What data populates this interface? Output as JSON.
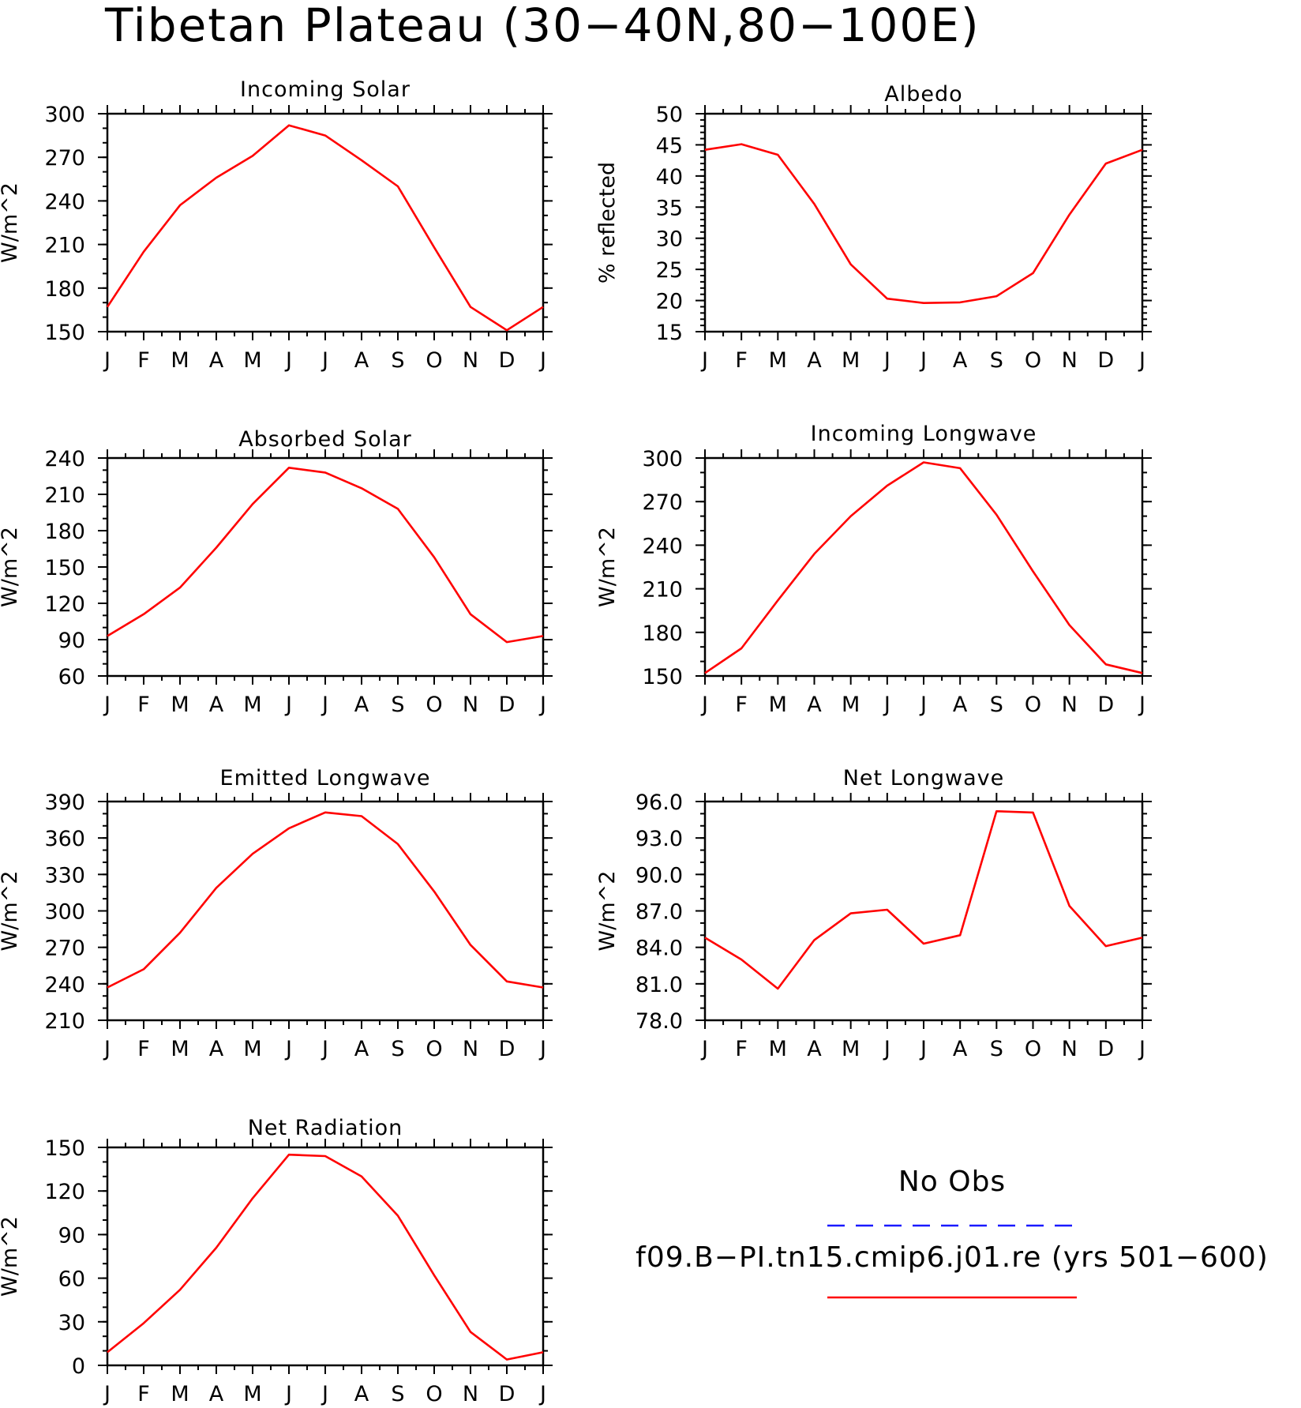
{
  "title": "Tibetan Plateau (30−40N,80−100E)",
  "colors": {
    "model": "#ff0000",
    "obs": "#1a1aff",
    "axis": "#000000"
  },
  "month_labels": [
    "J",
    "F",
    "M",
    "A",
    "M",
    "J",
    "J",
    "A",
    "S",
    "O",
    "N",
    "D",
    "J"
  ],
  "legend": {
    "obs_label": "No Obs",
    "model_label": "f09.B−PI.tn15.cmip6.j01.re (yrs 501−600)"
  },
  "chart_data": [
    {
      "type": "line",
      "title": "Incoming Solar",
      "ylabel": "W/m^2",
      "ylim": [
        150,
        300
      ],
      "yticks": [
        "150",
        "180",
        "210",
        "240",
        "270",
        "300"
      ],
      "ytick_values": [
        150,
        180,
        210,
        240,
        270,
        300
      ],
      "minor_step": 10,
      "categories": [
        "J",
        "F",
        "M",
        "A",
        "M",
        "J",
        "J",
        "A",
        "S",
        "O",
        "N",
        "D",
        "J"
      ],
      "series": [
        {
          "values": [
            167,
            205,
            237,
            256,
            271,
            292,
            285,
            268,
            250,
            208,
            167,
            151,
            167
          ]
        }
      ]
    },
    {
      "type": "line",
      "title": "Albedo",
      "ylabel": "% reflected",
      "ylim": [
        15,
        50
      ],
      "yticks": [
        "15",
        "20",
        "25",
        "30",
        "35",
        "40",
        "45",
        "50"
      ],
      "ytick_values": [
        15,
        20,
        25,
        30,
        35,
        40,
        45,
        50
      ],
      "minor_step": 1,
      "categories": [
        "J",
        "F",
        "M",
        "A",
        "M",
        "J",
        "J",
        "A",
        "S",
        "O",
        "N",
        "D",
        "J"
      ],
      "series": [
        {
          "values": [
            44.2,
            45.1,
            43.4,
            35.5,
            25.8,
            20.3,
            19.6,
            19.7,
            20.7,
            24.4,
            33.8,
            42.0,
            44.2
          ]
        }
      ]
    },
    {
      "type": "line",
      "title": "Absorbed Solar",
      "ylabel": "W/m^2",
      "ylim": [
        60,
        240
      ],
      "yticks": [
        "60",
        "90",
        "120",
        "150",
        "180",
        "210",
        "240"
      ],
      "ytick_values": [
        60,
        90,
        120,
        150,
        180,
        210,
        240
      ],
      "minor_step": 10,
      "categories": [
        "J",
        "F",
        "M",
        "A",
        "M",
        "J",
        "J",
        "A",
        "S",
        "O",
        "N",
        "D",
        "J"
      ],
      "series": [
        {
          "values": [
            93,
            111,
            133,
            166,
            202,
            232,
            228,
            215,
            198,
            158,
            111,
            88,
            93
          ]
        }
      ]
    },
    {
      "type": "line",
      "title": "Incoming Longwave",
      "ylabel": "W/m^2",
      "ylim": [
        150,
        300
      ],
      "yticks": [
        "150",
        "180",
        "210",
        "240",
        "270",
        "300"
      ],
      "ytick_values": [
        150,
        180,
        210,
        240,
        270,
        300
      ],
      "minor_step": 10,
      "categories": [
        "J",
        "F",
        "M",
        "A",
        "M",
        "J",
        "J",
        "A",
        "S",
        "O",
        "N",
        "D",
        "J"
      ],
      "series": [
        {
          "values": [
            152,
            169,
            202,
            234,
            260,
            281,
            297,
            293,
            261,
            222,
            185,
            158,
            152
          ]
        }
      ]
    },
    {
      "type": "line",
      "title": "Emitted Longwave",
      "ylabel": "W/m^2",
      "ylim": [
        210,
        390
      ],
      "yticks": [
        "210",
        "240",
        "270",
        "300",
        "330",
        "360",
        "390"
      ],
      "ytick_values": [
        210,
        240,
        270,
        300,
        330,
        360,
        390
      ],
      "minor_step": 10,
      "categories": [
        "J",
        "F",
        "M",
        "A",
        "M",
        "J",
        "J",
        "A",
        "S",
        "O",
        "N",
        "D",
        "J"
      ],
      "series": [
        {
          "values": [
            237,
            252,
            282,
            319,
            347,
            368,
            381,
            378,
            355,
            316,
            272,
            242,
            237
          ]
        }
      ]
    },
    {
      "type": "line",
      "title": "Net Longwave",
      "ylabel": "W/m^2",
      "ylim": [
        78,
        96
      ],
      "yticks": [
        "78.0",
        "81.0",
        "84.0",
        "87.0",
        "90.0",
        "93.0",
        "96.0"
      ],
      "ytick_values": [
        78,
        81,
        84,
        87,
        90,
        93,
        96
      ],
      "minor_step": 1,
      "categories": [
        "J",
        "F",
        "M",
        "A",
        "M",
        "J",
        "J",
        "A",
        "S",
        "O",
        "N",
        "D",
        "J"
      ],
      "series": [
        {
          "values": [
            84.8,
            83.0,
            80.6,
            84.6,
            86.8,
            87.1,
            84.3,
            85.0,
            95.2,
            95.1,
            87.4,
            84.1,
            84.8
          ]
        }
      ]
    },
    {
      "type": "line",
      "title": "Net Radiation",
      "ylabel": "W/m^2",
      "ylim": [
        0,
        150
      ],
      "yticks": [
        "0",
        "30",
        "60",
        "90",
        "120",
        "150"
      ],
      "ytick_values": [
        0,
        30,
        60,
        90,
        120,
        150
      ],
      "minor_step": 10,
      "categories": [
        "J",
        "F",
        "M",
        "A",
        "M",
        "J",
        "J",
        "A",
        "S",
        "O",
        "N",
        "D",
        "J"
      ],
      "series": [
        {
          "values": [
            9,
            29,
            52,
            81,
            115,
            145,
            144,
            130,
            103,
            62,
            23,
            4,
            9
          ]
        }
      ]
    }
  ]
}
